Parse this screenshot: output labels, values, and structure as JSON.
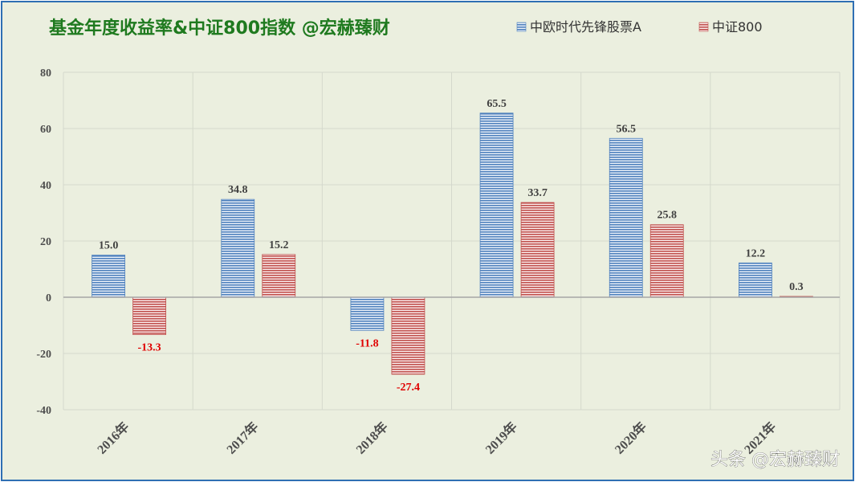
{
  "chart_data": {
    "type": "bar",
    "title": "基金年度收益率&中证800指数  @宏赫臻财",
    "categories": [
      "2016年",
      "2017年",
      "2018年",
      "2019年",
      "2020年",
      "2021年"
    ],
    "series": [
      {
        "name": "中欧时代先锋股票A",
        "values": [
          15.0,
          34.8,
          -11.8,
          65.5,
          56.5,
          12.2
        ],
        "color": "#4f81bd"
      },
      {
        "name": "中证800",
        "values": [
          -13.3,
          15.2,
          -27.4,
          33.7,
          25.8,
          0.3
        ],
        "color": "#c0504d"
      }
    ],
    "data_labels": [
      [
        "15.0",
        "34.8",
        "-11.8",
        "65.5",
        "56.5",
        "12.2"
      ],
      [
        "-13.3",
        "15.2",
        "-27.4",
        "33.7",
        "25.8",
        "0.3"
      ]
    ],
    "y_ticks": [
      "-40",
      "-20",
      "0",
      "20",
      "40",
      "60",
      "80"
    ],
    "ylim": [
      -40,
      80
    ],
    "xlabel": "",
    "ylabel": "",
    "grid": true,
    "legend_position": "top-right",
    "negative_label_color": "#e00000",
    "label_color": "#404040"
  },
  "watermark": "头条 @宏赫臻财"
}
